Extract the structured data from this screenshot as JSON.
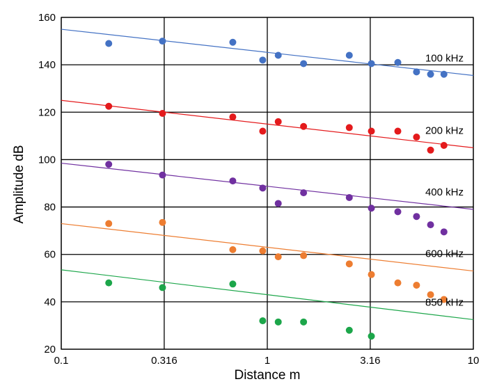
{
  "chart_data": {
    "type": "scatter",
    "xlabel": "Distance  m",
    "ylabel": "Amplitude  dB",
    "x_scale": "log",
    "xlim": [
      0.1,
      10
    ],
    "ylim": [
      20,
      160
    ],
    "x_ticks": [
      0.1,
      0.316,
      1,
      3.16,
      10
    ],
    "x_tick_labels": [
      "0.1",
      "0.316",
      "1",
      "3.16",
      "10"
    ],
    "y_ticks": [
      20,
      40,
      60,
      80,
      100,
      120,
      140,
      160
    ],
    "y_tick_labels": [
      "20",
      "40",
      "60",
      "80",
      "100",
      "120",
      "140",
      "160"
    ],
    "grid": true,
    "legend": "none",
    "series": [
      {
        "name": "100 kHz",
        "color": "#4472C4",
        "x": [
          0.17,
          0.31,
          0.68,
          0.95,
          1.13,
          1.5,
          2.5,
          3.2,
          4.3,
          5.3,
          6.2,
          7.2
        ],
        "y": [
          149,
          150,
          149.5,
          142,
          144,
          140.5,
          144,
          140.5,
          141,
          137,
          136,
          136
        ],
        "trend": {
          "x": [
            0.1,
            10
          ],
          "y": [
            155,
            135.5
          ]
        }
      },
      {
        "name": "200 kHz",
        "color": "#E41A1C",
        "x": [
          0.17,
          0.31,
          0.68,
          0.95,
          1.13,
          1.5,
          2.5,
          3.2,
          4.3,
          5.3,
          6.2,
          7.2
        ],
        "y": [
          122.5,
          119.5,
          118,
          112,
          116,
          114,
          113.5,
          112,
          112,
          109.5,
          104,
          106
        ],
        "trend": {
          "x": [
            0.1,
            10
          ],
          "y": [
            125,
            105
          ]
        }
      },
      {
        "name": "400 kHz",
        "color": "#7030A0",
        "x": [
          0.17,
          0.31,
          0.68,
          0.95,
          1.13,
          1.5,
          2.5,
          3.2,
          4.3,
          5.3,
          6.2,
          7.2
        ],
        "y": [
          98,
          93.5,
          91,
          88,
          81.5,
          86,
          84,
          79.5,
          78,
          76,
          72.5,
          69.5
        ],
        "trend": {
          "x": [
            0.1,
            10
          ],
          "y": [
            98.5,
            79
          ]
        }
      },
      {
        "name": "600 kHz",
        "color": "#ED7D31",
        "x": [
          0.17,
          0.31,
          0.68,
          0.95,
          1.13,
          1.5,
          2.5,
          3.2,
          4.3,
          5.3,
          6.2,
          7.2
        ],
        "y": [
          73,
          73.5,
          62,
          61.5,
          59,
          59.5,
          56,
          51.5,
          48,
          47,
          43,
          41
        ],
        "trend": {
          "x": [
            0.1,
            10
          ],
          "y": [
            73,
            53
          ]
        }
      },
      {
        "name": "850 kHz",
        "color": "#1CA64A",
        "x": [
          0.17,
          0.31,
          0.68,
          0.95,
          1.13,
          1.5,
          2.5,
          3.2
        ],
        "y": [
          48,
          46,
          47.5,
          32,
          31.5,
          31.5,
          28,
          25.5
        ],
        "trend": {
          "x": [
            0.1,
            10
          ],
          "y": [
            53.5,
            32.5
          ]
        }
      }
    ]
  }
}
